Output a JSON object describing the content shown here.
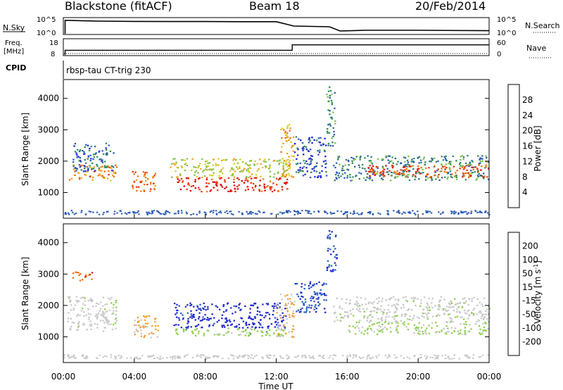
{
  "header": {
    "station": "Blackstone (fitACF)",
    "beam": "Beam 18",
    "date": "20/Feb/2014"
  },
  "top_panels": {
    "nsky_label": "N.Sky",
    "nsearch_label": "N.Search",
    "nsky_ticks": [
      "10^5",
      "10^0"
    ],
    "freq_label": "Freq.",
    "freq_unit": "[MHz]",
    "freq_ticks": [
      "18",
      "8"
    ],
    "nave_label": "Nave",
    "nave_ticks": [
      "60",
      "0"
    ],
    "cpid_label": "CPID",
    "cpid_text": "rbsp-tau CT-trig 230"
  },
  "colorbars": {
    "power": {
      "label": "Power [dB]",
      "ticks": [
        "28",
        "24",
        "20",
        "16",
        "12",
        "8",
        "4"
      ],
      "colors": [
        "#1f1fe6",
        "#2a5ab4",
        "#2e8b57",
        "#7fc24a",
        "#d4cf2a",
        "#f0a020",
        "#f07010",
        "#e83010",
        "#dd0000"
      ]
    },
    "velocity": {
      "label_main": "Velocity [m s",
      "label_sup": "-1",
      "ticks": [
        "200",
        "100",
        "50",
        "15",
        "-15",
        "-50",
        "-100",
        "-200"
      ],
      "colors": [
        "#1e28c8",
        "#2860c0",
        "#3a9a4a",
        "#8cd04a",
        "#c8c8c8",
        "#c8c8c8",
        "#f0a030",
        "#f07010",
        "#d41010"
      ]
    }
  },
  "chart_data": [
    {
      "type": "line",
      "title": "N.Sky / N.Search",
      "x_units": "hours UT",
      "xlim": [
        0,
        24
      ],
      "series": [
        {
          "name": "N.Sky",
          "x": [
            0.1,
            1,
            2,
            4,
            6,
            8,
            10,
            12,
            13,
            15,
            15.6,
            17,
            20,
            24
          ],
          "y": [
            0.96,
            0.93,
            0.9,
            0.88,
            0.87,
            0.87,
            0.86,
            0.86,
            0.55,
            0.5,
            0.2,
            0.25,
            0.25,
            0.22
          ]
        }
      ]
    },
    {
      "type": "line",
      "title": "Freq. / Nave",
      "xlim": [
        0,
        24
      ],
      "series": [
        {
          "name": "Freq.",
          "x": [
            0.1,
            12.9,
            12.9,
            24
          ],
          "y": [
            11,
            11,
            14.5,
            14.5
          ]
        }
      ]
    },
    {
      "type": "heatmap",
      "title": "Power [dB]",
      "xlabel": "",
      "ylabel": "Slant Range [km]",
      "xlim": [
        0,
        24
      ],
      "ylim": [
        180,
        4600
      ],
      "yticks": [
        1000,
        2000,
        3000,
        4000
      ],
      "colorbar_range": [
        0,
        30
      ],
      "regions": [
        {
          "x": [
            0.3,
            3.0
          ],
          "y": [
            1400,
            1900
          ],
          "v": 20
        },
        {
          "x": [
            0.5,
            2.8
          ],
          "y": [
            1700,
            2600
          ],
          "v": 6
        },
        {
          "x": [
            3.8,
            5.2
          ],
          "y": [
            1000,
            1700
          ],
          "v": 22
        },
        {
          "x": [
            6.2,
            12.6
          ],
          "y": [
            1050,
            1500
          ],
          "v": 26
        },
        {
          "x": [
            6.0,
            12.8
          ],
          "y": [
            1500,
            2100
          ],
          "v": 14
        },
        {
          "x": [
            12.2,
            13.0
          ],
          "y": [
            1500,
            3200
          ],
          "v": 18
        },
        {
          "x": [
            13.0,
            14.8
          ],
          "y": [
            1500,
            2800
          ],
          "v": 5
        },
        {
          "x": [
            14.8,
            15.3
          ],
          "y": [
            2500,
            4400
          ],
          "v": 8
        },
        {
          "x": [
            15.2,
            24.0
          ],
          "y": [
            1400,
            2200
          ],
          "v": 8
        },
        {
          "x": [
            17.0,
            24.0
          ],
          "y": [
            1500,
            1900
          ],
          "v": 24
        }
      ]
    },
    {
      "type": "heatmap",
      "title": "Velocity [m s-1]",
      "xlabel": "Time UT",
      "ylabel": "Slant Range [km]",
      "xlim": [
        0,
        24
      ],
      "ylim": [
        180,
        4600
      ],
      "xticks": [
        "00:00",
        "04:00",
        "08:00",
        "12:00",
        "16:00",
        "20:00",
        "00:00"
      ],
      "yticks": [
        1000,
        2000,
        3000,
        4000
      ],
      "colorbar_range": [
        -200,
        200
      ],
      "regions": [
        {
          "x": [
            0.2,
            3.0
          ],
          "y": [
            1200,
            2300
          ],
          "v": 0
        },
        {
          "x": [
            0.4,
            1.6
          ],
          "y": [
            2800,
            3100
          ],
          "v": -150
        },
        {
          "x": [
            3.8,
            5.3
          ],
          "y": [
            1000,
            1700
          ],
          "v": -80
        },
        {
          "x": [
            6.2,
            12.5
          ],
          "y": [
            1300,
            2100
          ],
          "v": 180
        },
        {
          "x": [
            6.2,
            12.5
          ],
          "y": [
            1050,
            1300
          ],
          "v": 40
        },
        {
          "x": [
            12.0,
            13.0
          ],
          "y": [
            1000,
            2400
          ],
          "v": -60
        },
        {
          "x": [
            13.0,
            14.8
          ],
          "y": [
            1800,
            2800
          ],
          "v": 150
        },
        {
          "x": [
            14.8,
            15.4
          ],
          "y": [
            3000,
            4400
          ],
          "v": 150
        },
        {
          "x": [
            15.2,
            24.0
          ],
          "y": [
            1500,
            2300
          ],
          "v": 0
        },
        {
          "x": [
            16.0,
            24.0
          ],
          "y": [
            1100,
            1500
          ],
          "v": 30
        }
      ]
    }
  ]
}
